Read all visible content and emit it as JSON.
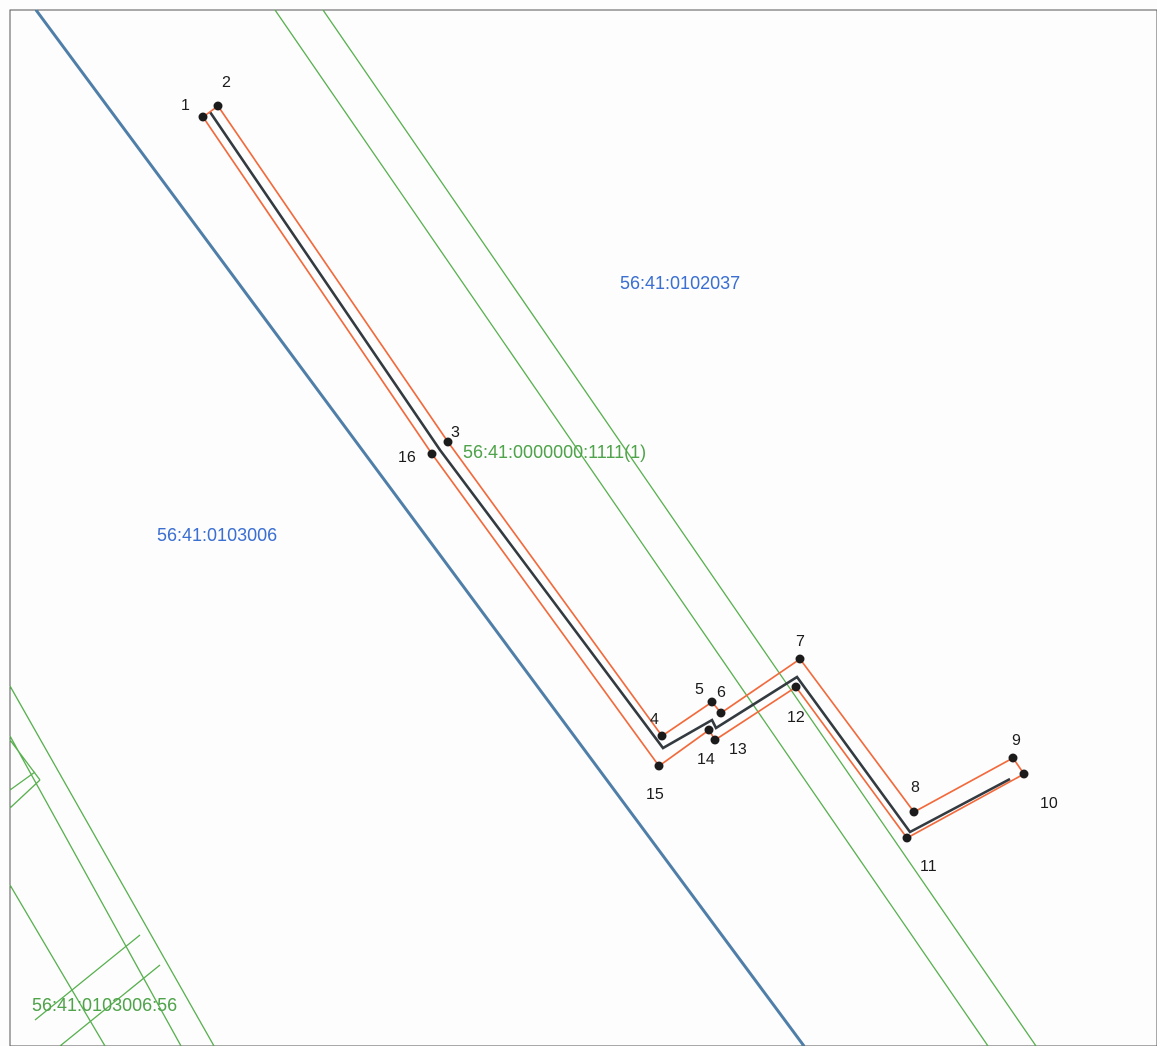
{
  "colors": {
    "cadastral_line": "#58b04f",
    "quarter_boundary": "#4f7fa8",
    "object_axis": "#333a40",
    "object_boundary": "#f26a3c",
    "point_fill": "#1b1b1b",
    "quarter_label": "#3b6fd1",
    "parcel_label": "#4fa34a"
  },
  "labels": {
    "quarter_top_right": "56:41:0102037",
    "quarter_left": "56:41:0103006",
    "parcel_main": "56:41:0000000:1111(1)",
    "parcel_bottom_left": "56:41:0103006:56"
  },
  "points": [
    {
      "n": "1"
    },
    {
      "n": "2"
    },
    {
      "n": "3"
    },
    {
      "n": "4"
    },
    {
      "n": "5"
    },
    {
      "n": "6"
    },
    {
      "n": "7"
    },
    {
      "n": "8"
    },
    {
      "n": "9"
    },
    {
      "n": "10"
    },
    {
      "n": "11"
    },
    {
      "n": "12"
    },
    {
      "n": "13"
    },
    {
      "n": "14"
    },
    {
      "n": "15"
    },
    {
      "n": "16"
    }
  ]
}
